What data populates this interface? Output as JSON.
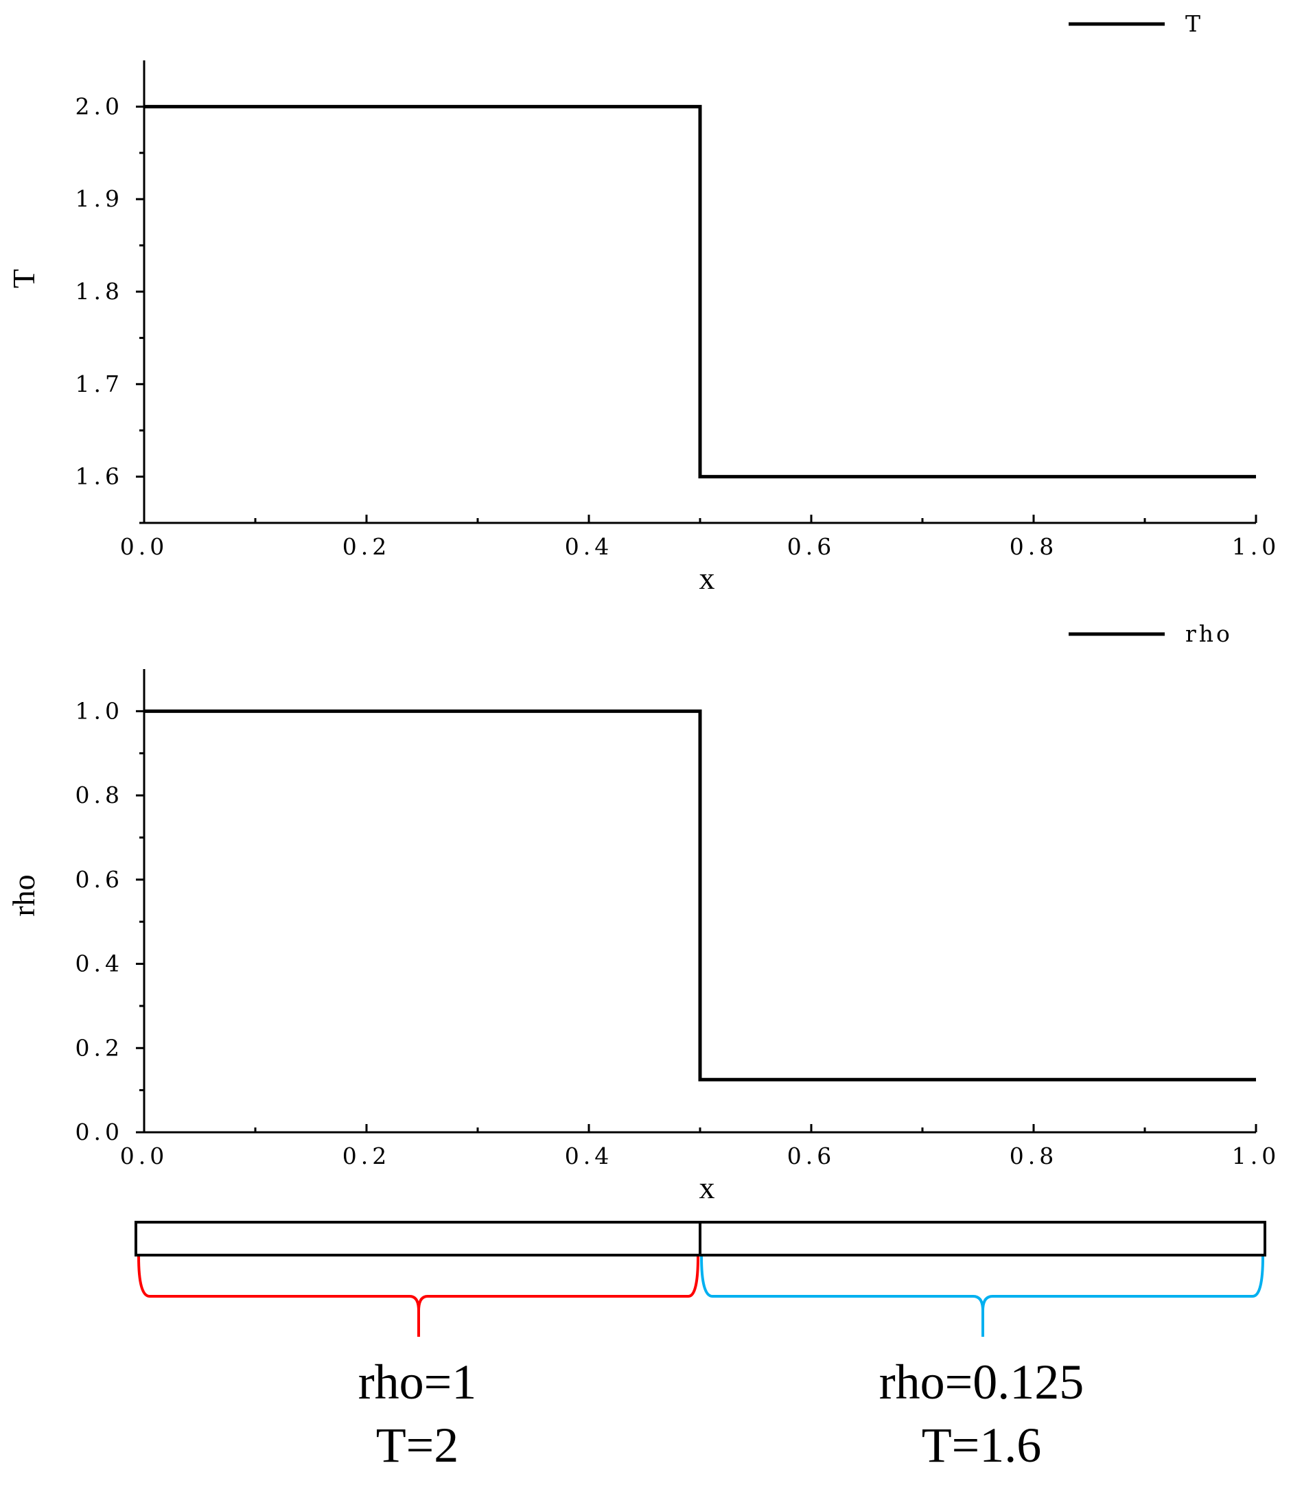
{
  "chart_data": [
    {
      "type": "line",
      "xlabel": "x",
      "ylabel": "T",
      "xlim": [
        0.0,
        1.0
      ],
      "ylim": [
        1.55,
        2.05
      ],
      "xticks": [
        "0.0",
        "0.2",
        "0.4",
        "0.6",
        "0.8",
        "1.0"
      ],
      "yticks": [
        "1.6",
        "1.7",
        "1.8",
        "1.9",
        "2.0"
      ],
      "legend_placement": "top-right",
      "series": [
        {
          "name": "T",
          "color": "#000000",
          "x": [
            0.0,
            0.5,
            0.5,
            1.0
          ],
          "y": [
            2.0,
            2.0,
            1.6,
            1.6
          ]
        }
      ]
    },
    {
      "type": "line",
      "xlabel": "x",
      "ylabel": "rho",
      "xlim": [
        0.0,
        1.0
      ],
      "ylim": [
        0.0,
        1.1
      ],
      "xticks": [
        "0.0",
        "0.2",
        "0.4",
        "0.6",
        "0.8",
        "1.0"
      ],
      "yticks": [
        "0.0",
        "0.2",
        "0.4",
        "0.6",
        "0.8",
        "1.0"
      ],
      "legend_placement": "top-right",
      "series": [
        {
          "name": "rho",
          "color": "#000000",
          "x": [
            0.0,
            0.5,
            0.5,
            1.0
          ],
          "y": [
            1.0,
            1.0,
            0.125,
            0.125
          ]
        }
      ]
    }
  ],
  "initial_condition": {
    "regions": [
      {
        "rho_label": "rho=1",
        "t_label": "T=2",
        "brace_color": "#ff0000"
      },
      {
        "rho_label": "rho=0.125",
        "t_label": "T=1.6",
        "brace_color": "#00b0f0"
      }
    ]
  }
}
